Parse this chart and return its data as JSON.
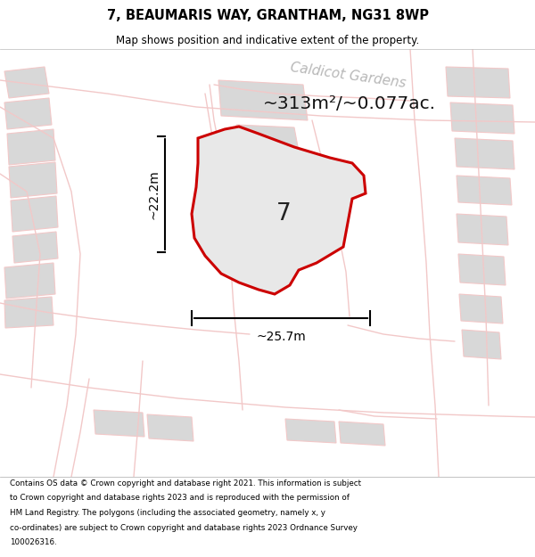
{
  "title": "7, BEAUMARIS WAY, GRANTHAM, NG31 8WP",
  "subtitle": "Map shows position and indicative extent of the property.",
  "area_label": "~313m²/~0.077ac.",
  "plot_number": "7",
  "dim_width": "~25.7m",
  "dim_height": "~22.2m",
  "footer_lines": [
    "Contains OS data © Crown copyright and database right 2021. This information is subject",
    "to Crown copyright and database rights 2023 and is reproduced with the permission of",
    "HM Land Registry. The polygons (including the associated geometry, namely x, y",
    "co-ordinates) are subject to Crown copyright and database rights 2023 Ordnance Survey",
    "100026316."
  ],
  "bg_color": "#ffffff",
  "plot_fill": "#e8e8e8",
  "plot_edge_color": "#cc0000",
  "road_color": "#f2c8c8",
  "building_fill": "#d8d8d8",
  "building_edge": "#f2c8c8",
  "road_text_color": "#b8b8b8",
  "title_color": "#000000",
  "footer_color": "#000000",
  "road_label": "Caldicot Gardens",
  "road_label_rotation": -8
}
